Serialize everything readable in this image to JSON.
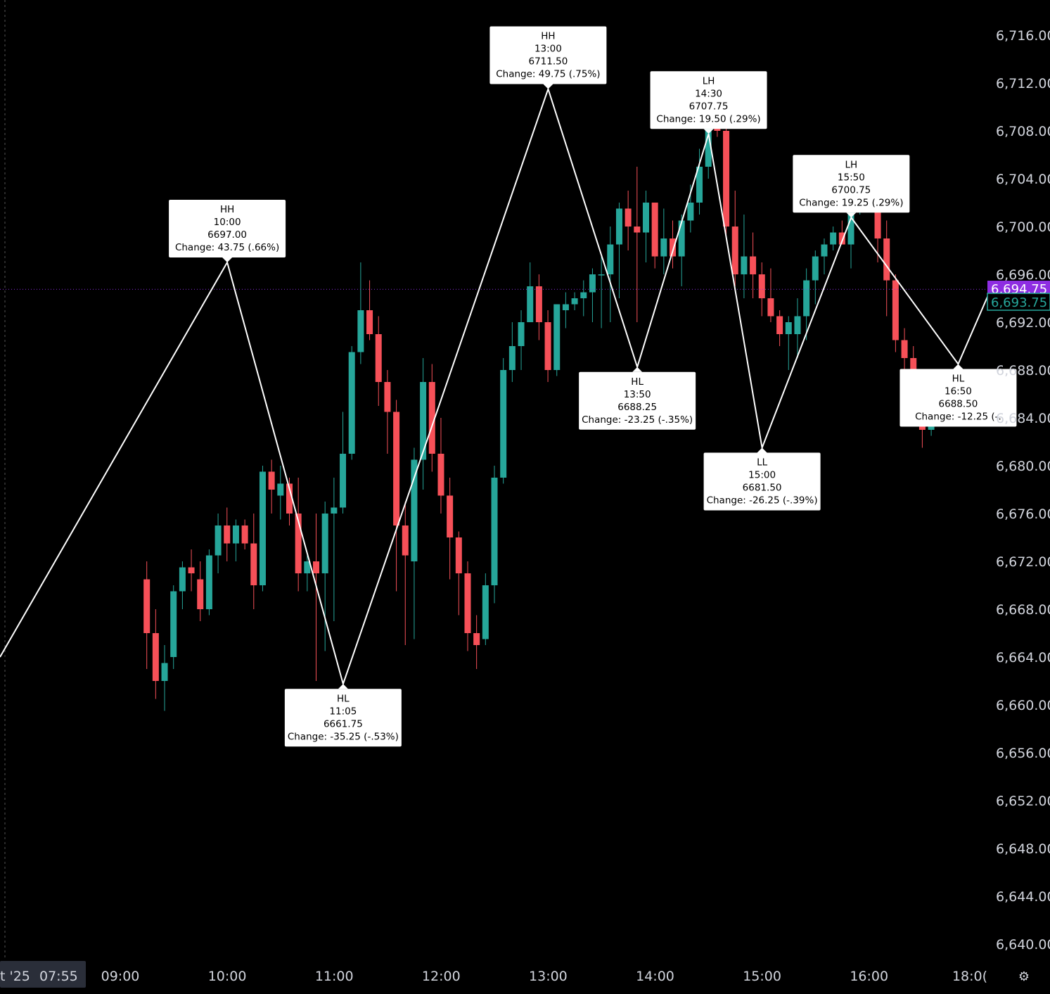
{
  "colors": {
    "background": "#000000",
    "up": "#26a69a",
    "down": "#f65058",
    "zigzag": "#ffffff",
    "last_price_tag": "#8e2de2",
    "current_price_tag": "#26a69a",
    "last_price_line": "#8e2de2",
    "axis_text": "#d1d4dc"
  },
  "x_axis": {
    "date_label": "t '25",
    "start_time_label": "07:55",
    "ticks": [
      "09:00",
      "10:00",
      "11:00",
      "12:00",
      "13:00",
      "14:00",
      "15:00",
      "16:00",
      "18:0("
    ]
  },
  "price_tags": {
    "last_price": "6,694.75",
    "current_price": "6,693.75"
  },
  "icons": {
    "settings": "gear-icon"
  },
  "chart_data": {
    "type": "candlestick",
    "title": "",
    "xlabel": "",
    "ylabel": "",
    "ylim": [
      6637.5,
      6718.5
    ],
    "y_ticks": [
      "6,716.00",
      "6,712.00",
      "6,708.00",
      "6,704.00",
      "6,700.00",
      "6,696.00",
      "6,692.00",
      "6,688.00",
      "6,684.00",
      "6,680.00",
      "6,676.00",
      "6,672.00",
      "6,668.00",
      "6,664.00",
      "6,660.00",
      "6,656.00",
      "6,652.00",
      "6,648.00",
      "6,644.00",
      "6,640.00"
    ],
    "grid": false,
    "candles": [
      {
        "t": "09:15",
        "o": 6670.5,
        "h": 6672.0,
        "l": 6663.0,
        "c": 6666.0
      },
      {
        "t": "09:20",
        "o": 6666.0,
        "h": 6668.0,
        "l": 6660.5,
        "c": 6662.0
      },
      {
        "t": "09:25",
        "o": 6662.0,
        "h": 6665.0,
        "l": 6659.5,
        "c": 6663.5
      },
      {
        "t": "09:30",
        "o": 6664.0,
        "h": 6670.0,
        "l": 6663.0,
        "c": 6669.5
      },
      {
        "t": "09:35",
        "o": 6669.5,
        "h": 6672.0,
        "l": 6668.0,
        "c": 6671.5
      },
      {
        "t": "09:40",
        "o": 6671.5,
        "h": 6673.0,
        "l": 6669.5,
        "c": 6671.0
      },
      {
        "t": "09:45",
        "o": 6670.5,
        "h": 6672.0,
        "l": 6667.0,
        "c": 6668.0
      },
      {
        "t": "09:50",
        "o": 6668.0,
        "h": 6673.0,
        "l": 6667.5,
        "c": 6672.5
      },
      {
        "t": "09:55",
        "o": 6672.5,
        "h": 6676.0,
        "l": 6671.0,
        "c": 6675.0
      },
      {
        "t": "10:00",
        "o": 6675.0,
        "h": 6676.5,
        "l": 6672.0,
        "c": 6673.5
      },
      {
        "t": "10:05",
        "o": 6673.5,
        "h": 6675.5,
        "l": 6672.0,
        "c": 6675.0
      },
      {
        "t": "10:10",
        "o": 6675.0,
        "h": 6675.5,
        "l": 6673.0,
        "c": 6673.5
      },
      {
        "t": "10:15",
        "o": 6673.5,
        "h": 6676.0,
        "l": 6668.0,
        "c": 6670.0
      },
      {
        "t": "10:20",
        "o": 6670.0,
        "h": 6680.0,
        "l": 6669.5,
        "c": 6679.5
      },
      {
        "t": "10:25",
        "o": 6679.5,
        "h": 6680.5,
        "l": 6676.0,
        "c": 6678.0
      },
      {
        "t": "10:30",
        "o": 6677.5,
        "h": 6680.0,
        "l": 6675.5,
        "c": 6678.5
      },
      {
        "t": "10:35",
        "o": 6678.5,
        "h": 6679.0,
        "l": 6675.0,
        "c": 6676.0
      },
      {
        "t": "10:40",
        "o": 6676.0,
        "h": 6679.0,
        "l": 6669.5,
        "c": 6671.0
      },
      {
        "t": "10:45",
        "o": 6671.0,
        "h": 6672.5,
        "l": 6669.5,
        "c": 6672.0
      },
      {
        "t": "10:50",
        "o": 6672.0,
        "h": 6676.0,
        "l": 6662.0,
        "c": 6671.0
      },
      {
        "t": "10:55",
        "o": 6671.0,
        "h": 6677.0,
        "l": 6664.5,
        "c": 6676.0
      },
      {
        "t": "11:00",
        "o": 6676.0,
        "h": 6679.0,
        "l": 6667.0,
        "c": 6676.5
      },
      {
        "t": "11:05",
        "o": 6676.5,
        "h": 6684.5,
        "l": 6676.0,
        "c": 6681.0
      },
      {
        "t": "11:10",
        "o": 6681.0,
        "h": 6690.0,
        "l": 6680.5,
        "c": 6689.5
      },
      {
        "t": "11:15",
        "o": 6689.5,
        "h": 6697.0,
        "l": 6688.5,
        "c": 6693.0
      },
      {
        "t": "11:20",
        "o": 6693.0,
        "h": 6695.5,
        "l": 6690.5,
        "c": 6691.0
      },
      {
        "t": "11:25",
        "o": 6691.0,
        "h": 6692.5,
        "l": 6685.0,
        "c": 6687.0
      },
      {
        "t": "11:30",
        "o": 6687.0,
        "h": 6688.0,
        "l": 6681.0,
        "c": 6684.5
      },
      {
        "t": "11:35",
        "o": 6684.5,
        "h": 6685.5,
        "l": 6669.5,
        "c": 6675.0
      },
      {
        "t": "11:40",
        "o": 6675.0,
        "h": 6677.0,
        "l": 6665.0,
        "c": 6672.5
      },
      {
        "t": "11:45",
        "o": 6672.0,
        "h": 6681.5,
        "l": 6665.5,
        "c": 6680.5
      },
      {
        "t": "11:50",
        "o": 6680.5,
        "h": 6689.0,
        "l": 6678.0,
        "c": 6687.0
      },
      {
        "t": "11:55",
        "o": 6687.0,
        "h": 6688.5,
        "l": 6679.5,
        "c": 6681.0
      },
      {
        "t": "12:00",
        "o": 6681.0,
        "h": 6684.0,
        "l": 6676.0,
        "c": 6677.5
      },
      {
        "t": "12:05",
        "o": 6677.5,
        "h": 6679.0,
        "l": 6670.5,
        "c": 6674.0
      },
      {
        "t": "12:10",
        "o": 6674.0,
        "h": 6674.5,
        "l": 6667.5,
        "c": 6671.0
      },
      {
        "t": "12:15",
        "o": 6671.0,
        "h": 6672.0,
        "l": 6664.5,
        "c": 6666.0
      },
      {
        "t": "12:20",
        "o": 6666.0,
        "h": 6667.5,
        "l": 6663.0,
        "c": 6665.0
      },
      {
        "t": "12:25",
        "o": 6665.5,
        "h": 6671.0,
        "l": 6665.0,
        "c": 6670.0
      },
      {
        "t": "12:30",
        "o": 6670.0,
        "h": 6680.0,
        "l": 6668.5,
        "c": 6679.0
      },
      {
        "t": "12:35",
        "o": 6679.0,
        "h": 6689.0,
        "l": 6678.5,
        "c": 6688.0
      },
      {
        "t": "12:40",
        "o": 6688.0,
        "h": 6692.0,
        "l": 6687.0,
        "c": 6690.0
      },
      {
        "t": "12:45",
        "o": 6690.0,
        "h": 6693.0,
        "l": 6688.0,
        "c": 6692.0
      },
      {
        "t": "12:50",
        "o": 6692.0,
        "h": 6697.0,
        "l": 6692.0,
        "c": 6695.0
      },
      {
        "t": "12:55",
        "o": 6695.0,
        "h": 6696.0,
        "l": 6690.5,
        "c": 6692.0
      },
      {
        "t": "13:00",
        "o": 6692.0,
        "h": 6693.0,
        "l": 6687.0,
        "c": 6688.0
      },
      {
        "t": "13:05",
        "o": 6688.0,
        "h": 6693.0,
        "l": 6687.5,
        "c": 6693.5
      },
      {
        "t": "13:10",
        "o": 6693.0,
        "h": 6694.5,
        "l": 6691.5,
        "c": 6693.5
      },
      {
        "t": "13:15",
        "o": 6693.5,
        "h": 6694.5,
        "l": 6693.0,
        "c": 6694.0
      },
      {
        "t": "13:20",
        "o": 6694.0,
        "h": 6695.5,
        "l": 6692.5,
        "c": 6694.5
      },
      {
        "t": "13:25",
        "o": 6694.5,
        "h": 6696.5,
        "l": 6692.0,
        "c": 6696.0
      },
      {
        "t": "13:30",
        "o": 6696.0,
        "h": 6697.5,
        "l": 6691.5,
        "c": 6696.0
      },
      {
        "t": "13:35",
        "o": 6696.0,
        "h": 6700.0,
        "l": 6692.0,
        "c": 6698.5
      },
      {
        "t": "13:40",
        "o": 6698.5,
        "h": 6702.0,
        "l": 6694.0,
        "c": 6701.5
      },
      {
        "t": "13:45",
        "o": 6701.5,
        "h": 6703.0,
        "l": 6698.0,
        "c": 6700.0
      },
      {
        "t": "13:50",
        "o": 6700.0,
        "h": 6705.0,
        "l": 6692.0,
        "c": 6699.5
      },
      {
        "t": "13:55",
        "o": 6699.5,
        "h": 6703.0,
        "l": 6697.0,
        "c": 6702.0
      },
      {
        "t": "14:00",
        "o": 6702.0,
        "h": 6702.0,
        "l": 6696.5,
        "c": 6697.5
      },
      {
        "t": "14:05",
        "o": 6697.5,
        "h": 6701.5,
        "l": 6696.0,
        "c": 6699.0
      },
      {
        "t": "14:10",
        "o": 6699.0,
        "h": 6700.5,
        "l": 6696.5,
        "c": 6697.5
      },
      {
        "t": "14:15",
        "o": 6697.5,
        "h": 6701.0,
        "l": 6695.0,
        "c": 6700.5
      },
      {
        "t": "14:20",
        "o": 6700.5,
        "h": 6703.5,
        "l": 6699.5,
        "c": 6702.0
      },
      {
        "t": "14:25",
        "o": 6702.0,
        "h": 6706.5,
        "l": 6701.0,
        "c": 6705.0
      },
      {
        "t": "14:30",
        "o": 6705.0,
        "h": 6711.5,
        "l": 6704.0,
        "c": 6710.0
      },
      {
        "t": "14:35",
        "o": 6710.0,
        "h": 6711.0,
        "l": 6707.5,
        "c": 6708.0
      },
      {
        "t": "14:40",
        "o": 6708.0,
        "h": 6709.0,
        "l": 6699.0,
        "c": 6700.0
      },
      {
        "t": "14:45",
        "o": 6700.0,
        "h": 6703.0,
        "l": 6695.0,
        "c": 6696.0
      },
      {
        "t": "14:50",
        "o": 6696.0,
        "h": 6701.0,
        "l": 6694.0,
        "c": 6697.5
      },
      {
        "t": "14:55",
        "o": 6697.5,
        "h": 6699.5,
        "l": 6694.0,
        "c": 6696.0
      },
      {
        "t": "15:00",
        "o": 6696.0,
        "h": 6697.0,
        "l": 6692.5,
        "c": 6694.0
      },
      {
        "t": "15:05",
        "o": 6694.0,
        "h": 6696.5,
        "l": 6692.0,
        "c": 6692.5
      },
      {
        "t": "15:10",
        "o": 6692.5,
        "h": 6693.0,
        "l": 6690.0,
        "c": 6691.0
      },
      {
        "t": "15:15",
        "o": 6691.0,
        "h": 6692.5,
        "l": 6688.0,
        "c": 6692.0
      },
      {
        "t": "15:20",
        "o": 6691.0,
        "h": 6694.0,
        "l": 6689.0,
        "c": 6692.5
      },
      {
        "t": "15:25",
        "o": 6692.5,
        "h": 6696.5,
        "l": 6690.5,
        "c": 6695.5
      },
      {
        "t": "15:30",
        "o": 6695.5,
        "h": 6698.0,
        "l": 6693.5,
        "c": 6697.5
      },
      {
        "t": "15:35",
        "o": 6697.5,
        "h": 6699.0,
        "l": 6696.0,
        "c": 6698.5
      },
      {
        "t": "15:40",
        "o": 6698.5,
        "h": 6700.0,
        "l": 6698.0,
        "c": 6699.5
      },
      {
        "t": "15:45",
        "o": 6699.5,
        "h": 6700.5,
        "l": 6699.0,
        "c": 6698.5
      },
      {
        "t": "15:50",
        "o": 6698.5,
        "h": 6702.0,
        "l": 6696.5,
        "c": 6701.5
      },
      {
        "t": "15:55",
        "o": 6701.5,
        "h": 6705.0,
        "l": 6701.0,
        "c": 6704.0
      },
      {
        "t": "16:00",
        "o": 6704.0,
        "h": 6704.5,
        "l": 6701.5,
        "c": 6702.5
      },
      {
        "t": "16:05",
        "o": 6702.5,
        "h": 6704.0,
        "l": 6697.0,
        "c": 6699.0
      },
      {
        "t": "16:10",
        "o": 6699.0,
        "h": 6700.5,
        "l": 6692.5,
        "c": 6695.5
      },
      {
        "t": "16:15",
        "o": 6695.5,
        "h": 6696.0,
        "l": 6689.5,
        "c": 6690.5
      },
      {
        "t": "16:20",
        "o": 6690.5,
        "h": 6691.5,
        "l": 6687.0,
        "c": 6689.0
      },
      {
        "t": "16:25",
        "o": 6689.0,
        "h": 6690.0,
        "l": 6684.0,
        "c": 6685.0
      },
      {
        "t": "16:30",
        "o": 6685.0,
        "h": 6686.0,
        "l": 6681.5,
        "c": 6683.0
      },
      {
        "t": "16:35",
        "o": 6683.0,
        "h": 6685.0,
        "l": 6682.5,
        "c": 6684.5
      }
    ],
    "note_candles_source": "approximate OHLC read from chart",
    "pivots": [
      {
        "type": "HH",
        "time": "10:00",
        "price": "6697.00",
        "change": "Change: 43.75 (.66%)",
        "side": "above"
      },
      {
        "type": "HL",
        "time": "11:05",
        "price": "6661.75",
        "change": "Change: -35.25 (-.53%)",
        "side": "below"
      },
      {
        "type": "HH",
        "time": "13:00",
        "price": "6711.50",
        "change": "Change: 49.75 (.75%)",
        "side": "above"
      },
      {
        "type": "HL",
        "time": "13:50",
        "price": "6688.25",
        "change": "Change: -23.25 (-.35%)",
        "side": "below"
      },
      {
        "type": "LH",
        "time": "14:30",
        "price": "6707.75",
        "change": "Change: 19.50 (.29%)",
        "side": "above"
      },
      {
        "type": "LL",
        "time": "15:00",
        "price": "6681.50",
        "change": "Change: -26.25 (-.39%)",
        "side": "below"
      },
      {
        "type": "LH",
        "time": "15:50",
        "price": "6700.75",
        "change": "Change: 19.25 (.29%)",
        "side": "above"
      },
      {
        "type": "HL",
        "time": "16:50",
        "price": "6688.50",
        "change": "Change: -12.25 (-.",
        "side": "below"
      }
    ]
  }
}
